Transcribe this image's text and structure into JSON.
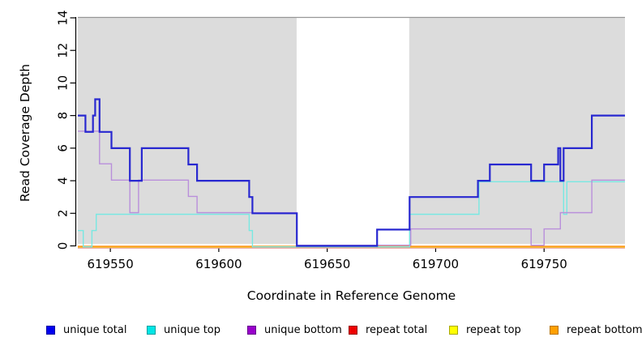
{
  "chart_data": {
    "type": "line",
    "subtype": "step-coverage-plot",
    "title": "",
    "xlabel": "Coordinate in Reference Genome",
    "ylabel": "Read Coverage Depth",
    "xlim": [
      619535,
      619787.3
    ],
    "ylim": [
      0,
      14
    ],
    "grid": "off",
    "yticks": [
      0,
      2,
      4,
      6,
      8,
      10,
      12,
      14
    ],
    "xticks": [
      619550,
      619600,
      619650,
      619700,
      619750
    ],
    "panel_color": "#DCDCDC",
    "panel_border_color": "#969696",
    "shaded_regions": [
      {
        "from": 619535,
        "to": 619635.9
      },
      {
        "from": 619687.8,
        "to": 619787.3
      }
    ],
    "gap_region": {
      "from": 619635.9,
      "to": 619687.8
    },
    "legend_position": "bottom",
    "series": [
      {
        "name": "repeat top",
        "color": "#F0F000",
        "legend_fill": "#FFFF00",
        "legend_border": "#A8A800",
        "width": 1.4,
        "offset": 1.4,
        "steps": [
          [
            619535,
            0
          ]
        ]
      },
      {
        "name": "repeat total",
        "color": "#E89090",
        "legend_fill": "#EE0000",
        "legend_border": "#980000",
        "width": 1.2,
        "offset": 2.6,
        "steps": [
          [
            619535,
            0
          ]
        ]
      },
      {
        "name": "repeat bottom",
        "color": "#FF9520",
        "legend_fill": "#FFA000",
        "legend_border": "#B87400",
        "width": 1.6,
        "offset": 0.6,
        "steps": [
          [
            619535,
            0
          ]
        ]
      },
      {
        "name": "unique top",
        "color": "#78E8E2",
        "legend_fill": "#00E6E6",
        "legend_border": "#00A0A0",
        "width": 1.4,
        "offset": 1.2,
        "steps": [
          [
            619535,
            1
          ],
          [
            619537.5,
            0
          ],
          [
            619541.5,
            1
          ],
          [
            619543.5,
            2
          ],
          [
            619614,
            1
          ],
          [
            619615.5,
            0
          ],
          [
            619688,
            2
          ],
          [
            619720,
            4
          ],
          [
            619759,
            2
          ],
          [
            619760.5,
            4
          ]
        ]
      },
      {
        "name": "unique bottom",
        "color": "#B98FDB",
        "legend_fill": "#9900CC",
        "legend_border": "#66008C",
        "width": 1.4,
        "offset": -0.8,
        "steps": [
          [
            619535,
            7
          ],
          [
            619545,
            5
          ],
          [
            619550.5,
            4
          ],
          [
            619559,
            2
          ],
          [
            619563,
            4
          ],
          [
            619586,
            3
          ],
          [
            619590,
            2
          ],
          [
            619636,
            0
          ],
          [
            619688.5,
            1
          ],
          [
            619744,
            0
          ],
          [
            619750,
            1
          ],
          [
            619757.5,
            2
          ],
          [
            619772,
            4
          ]
        ]
      },
      {
        "name": "unique total",
        "color": "#2828D0",
        "legend_fill": "#0000F0",
        "legend_border": "#0000A0",
        "width": 2.2,
        "offset": 0,
        "steps": [
          [
            619535,
            8
          ],
          [
            619538.5,
            7
          ],
          [
            619542,
            8
          ],
          [
            619543,
            9
          ],
          [
            619545,
            7
          ],
          [
            619550.5,
            6
          ],
          [
            619559,
            4
          ],
          [
            619564.5,
            6
          ],
          [
            619586,
            5
          ],
          [
            619590,
            4
          ],
          [
            619614,
            3
          ],
          [
            619615.5,
            2
          ],
          [
            619636,
            0
          ],
          [
            619673,
            1
          ],
          [
            619688,
            3
          ],
          [
            619719.5,
            4
          ],
          [
            619725,
            5
          ],
          [
            619744,
            4
          ],
          [
            619750,
            5
          ],
          [
            619756.5,
            6
          ],
          [
            619757.5,
            4
          ],
          [
            619759,
            6
          ],
          [
            619772,
            8
          ]
        ]
      }
    ]
  },
  "legend": {
    "items": [
      {
        "label": "unique total"
      },
      {
        "label": "unique top"
      },
      {
        "label": "unique bottom"
      },
      {
        "label": "repeat total"
      },
      {
        "label": "repeat top"
      },
      {
        "label": "repeat bottom"
      }
    ]
  }
}
